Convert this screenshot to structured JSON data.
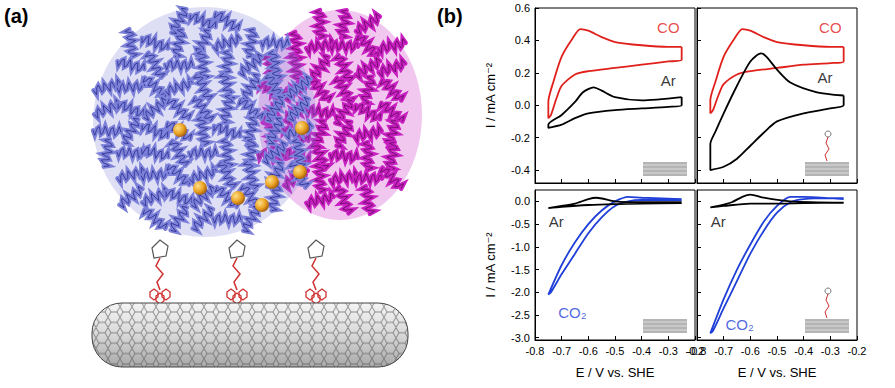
{
  "panel_labels": [
    "(a)",
    "(b)"
  ],
  "chart_data": [
    {
      "type": "line",
      "ylabel": "I / mA cm⁻²",
      "xlim": [
        -0.8,
        -0.2
      ],
      "xticks": [
        -0.8,
        -0.7,
        -0.6,
        -0.5,
        -0.4,
        -0.3,
        -0.2
      ],
      "ylim": [
        -0.48,
        0.6
      ],
      "yticks": [
        -0.4,
        -0.2,
        {
          "value": 0,
          "label": "0.0"
        },
        0.2,
        0.4,
        0.6
      ],
      "tick_labels": "y",
      "grid": false,
      "series": [
        {
          "name": "CO",
          "color": "#e0201b",
          "x": [
            -0.25,
            -0.3,
            -0.4,
            -0.5,
            -0.55,
            -0.6,
            -0.63,
            -0.66,
            -0.7,
            -0.73,
            -0.75,
            -0.75,
            -0.74,
            -0.72,
            -0.7,
            -0.65,
            -0.6,
            -0.5,
            -0.4,
            -0.3,
            -0.25,
            -0.25
          ],
          "values": [
            0.36,
            0.36,
            0.37,
            0.39,
            0.42,
            0.46,
            0.47,
            0.41,
            0.3,
            0.15,
            0.02,
            -0.08,
            -0.06,
            0.04,
            0.12,
            0.19,
            0.21,
            0.23,
            0.25,
            0.27,
            0.28,
            0.36
          ]
        },
        {
          "name": "Ar",
          "color": "#000000",
          "x": [
            -0.25,
            -0.4,
            -0.5,
            -0.55,
            -0.58,
            -0.62,
            -0.65,
            -0.7,
            -0.75,
            -0.75,
            -0.7,
            -0.65,
            -0.6,
            -0.5,
            -0.4,
            -0.3,
            -0.25,
            -0.25
          ],
          "values": [
            0.05,
            0.03,
            0.05,
            0.09,
            0.11,
            0.08,
            0.02,
            -0.06,
            -0.12,
            -0.14,
            -0.12,
            -0.08,
            -0.05,
            -0.03,
            -0.02,
            -0.01,
            0.0,
            0.05
          ]
        }
      ],
      "annotations": [
        {
          "text": "CO",
          "x": -0.3,
          "y": 0.48,
          "color": "#e0201b"
        },
        {
          "text": "Ar",
          "x": -0.3,
          "y": 0.15,
          "color": "#000000"
        }
      ]
    },
    {
      "type": "line",
      "xlim": [
        -0.8,
        -0.2
      ],
      "xticks": [
        -0.8,
        -0.7,
        -0.6,
        -0.5,
        -0.4,
        -0.3,
        -0.2
      ],
      "ylim": [
        -0.48,
        0.6
      ],
      "yticks": [
        -0.4,
        -0.2,
        {
          "value": 0,
          "label": "0.0"
        },
        0.2,
        0.4,
        0.6
      ],
      "tick_labels": false,
      "grid": false,
      "series": [
        {
          "name": "CO",
          "color": "#e0201b",
          "x": [
            -0.25,
            -0.3,
            -0.4,
            -0.5,
            -0.55,
            -0.6,
            -0.63,
            -0.66,
            -0.7,
            -0.73,
            -0.75,
            -0.75,
            -0.74,
            -0.72,
            -0.7,
            -0.65,
            -0.6,
            -0.5,
            -0.4,
            -0.3,
            -0.25,
            -0.25
          ],
          "values": [
            0.36,
            0.36,
            0.37,
            0.39,
            0.42,
            0.46,
            0.47,
            0.41,
            0.3,
            0.15,
            0.03,
            -0.05,
            -0.03,
            0.06,
            0.13,
            0.19,
            0.21,
            0.23,
            0.25,
            0.26,
            0.27,
            0.36
          ]
        },
        {
          "name": "Ar",
          "color": "#000000",
          "x": [
            -0.25,
            -0.35,
            -0.45,
            -0.5,
            -0.54,
            -0.56,
            -0.6,
            -0.65,
            -0.7,
            -0.73,
            -0.75,
            -0.75,
            -0.7,
            -0.65,
            -0.6,
            -0.55,
            -0.5,
            -0.4,
            -0.3,
            -0.25,
            -0.25
          ],
          "values": [
            0.06,
            0.08,
            0.14,
            0.22,
            0.3,
            0.32,
            0.27,
            0.12,
            -0.05,
            -0.16,
            -0.24,
            -0.4,
            -0.38,
            -0.33,
            -0.25,
            -0.17,
            -0.1,
            -0.05,
            -0.02,
            0.0,
            0.06
          ]
        }
      ],
      "annotations": [
        {
          "text": "CO",
          "x": -0.3,
          "y": 0.48,
          "color": "#e0201b"
        },
        {
          "text": "Ar",
          "x": -0.32,
          "y": 0.17,
          "color": "#000000"
        }
      ]
    },
    {
      "type": "line",
      "ylabel": "I / mA cm⁻²",
      "xlabel": "E / V vs. SHE",
      "xlim": [
        -0.8,
        -0.2
      ],
      "xticks": [
        -0.8,
        -0.7,
        -0.6,
        -0.5,
        -0.4,
        -0.3,
        -0.2
      ],
      "ylim": [
        -3.05,
        0.25
      ],
      "yticks": [
        {
          "value": -3,
          "label": "-3.0"
        },
        -2.5,
        {
          "value": -2,
          "label": "-2.0"
        },
        -1.5,
        {
          "value": -1,
          "label": "-1.0"
        },
        -0.5,
        {
          "value": 0,
          "label": "0.0"
        }
      ],
      "tick_labels": true,
      "grid": false,
      "series": [
        {
          "name": "CO₂",
          "color": "#1f3fd8",
          "x": [
            -0.25,
            -0.3,
            -0.4,
            -0.45,
            -0.5,
            -0.55,
            -0.6,
            -0.65,
            -0.7,
            -0.75,
            -0.74,
            -0.7,
            -0.65,
            -0.6,
            -0.55,
            -0.5,
            -0.45,
            -0.4,
            -0.3,
            -0.25
          ],
          "values": [
            0.05,
            0.06,
            0.08,
            0.1,
            0.0,
            -0.2,
            -0.5,
            -0.9,
            -1.4,
            -2.05,
            -2.0,
            -1.6,
            -1.15,
            -0.7,
            -0.35,
            -0.1,
            0.0,
            0.03,
            0.03,
            0.03
          ]
        },
        {
          "name": "Ar",
          "color": "#000000",
          "x": [
            -0.25,
            -0.4,
            -0.5,
            -0.57,
            -0.6,
            -0.65,
            -0.7,
            -0.75,
            -0.7,
            -0.6,
            -0.5,
            -0.4,
            -0.25
          ],
          "values": [
            -0.02,
            -0.02,
            0.0,
            0.08,
            0.05,
            -0.05,
            -0.1,
            -0.15,
            -0.12,
            -0.08,
            -0.06,
            -0.05,
            -0.04
          ]
        }
      ],
      "annotations": [
        {
          "text": "Ar",
          "x": -0.72,
          "y": -0.45,
          "color": "#000000"
        },
        {
          "text": "CO₂",
          "x": -0.66,
          "y": -2.45,
          "color": "#1f3fd8"
        }
      ]
    },
    {
      "type": "line",
      "xlabel": "E / V vs. SHE",
      "xlim": [
        -0.8,
        -0.2
      ],
      "xticks": [
        -0.8,
        -0.7,
        -0.6,
        -0.5,
        -0.4,
        -0.3,
        -0.2
      ],
      "ylim": [
        -3.05,
        0.25
      ],
      "yticks": [
        {
          "value": -3,
          "label": "-3.0"
        },
        -2.5,
        {
          "value": -2,
          "label": "-2.0"
        },
        -1.5,
        {
          "value": -1,
          "label": "-1.0"
        },
        -0.5,
        {
          "value": 0,
          "label": "0.0"
        }
      ],
      "tick_labels": "x",
      "grid": false,
      "series": [
        {
          "name": "CO₂",
          "color": "#1f3fd8",
          "x": [
            -0.25,
            -0.3,
            -0.4,
            -0.45,
            -0.5,
            -0.55,
            -0.6,
            -0.65,
            -0.7,
            -0.75,
            -0.74,
            -0.7,
            -0.65,
            -0.6,
            -0.55,
            -0.5,
            -0.45,
            -0.4,
            -0.3,
            -0.25
          ],
          "values": [
            0.05,
            0.07,
            0.1,
            0.1,
            -0.1,
            -0.45,
            -0.95,
            -1.5,
            -2.15,
            -2.9,
            -2.85,
            -2.35,
            -1.75,
            -1.15,
            -0.65,
            -0.25,
            -0.02,
            0.05,
            0.07,
            0.07
          ]
        },
        {
          "name": "Ar",
          "color": "#000000",
          "x": [
            -0.25,
            -0.45,
            -0.55,
            -0.6,
            -0.63,
            -0.67,
            -0.72,
            -0.75,
            -0.7,
            -0.6,
            -0.5,
            -0.4,
            -0.25
          ],
          "values": [
            -0.03,
            0.0,
            0.08,
            0.15,
            0.1,
            -0.02,
            -0.1,
            -0.13,
            -0.1,
            -0.05,
            -0.05,
            -0.04,
            -0.03
          ]
        }
      ],
      "annotations": [
        {
          "text": "Ar",
          "x": -0.72,
          "y": -0.45,
          "color": "#000000"
        },
        {
          "text": "CO₂",
          "x": -0.64,
          "y": -2.7,
          "color": "#1f3fd8"
        }
      ]
    }
  ]
}
